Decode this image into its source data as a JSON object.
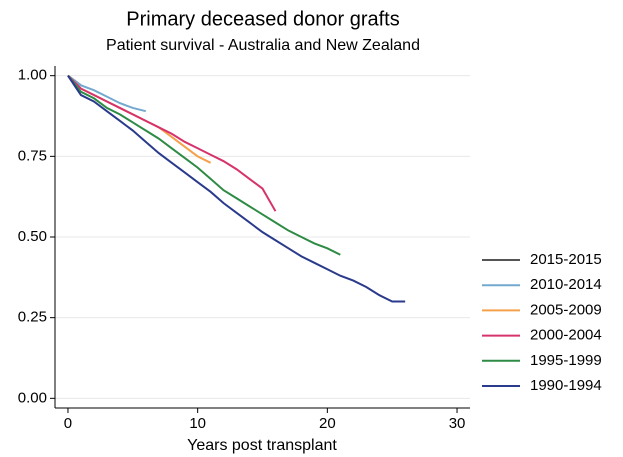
{
  "chart_data": {
    "type": "line",
    "title": "Primary deceased donor grafts",
    "subtitle": "Patient survival - Australia and New Zealand",
    "x_label": "Years post transplant",
    "xlim": [
      -1,
      31
    ],
    "xticks": [
      0,
      10,
      20,
      30
    ],
    "ylim": [
      -0.03,
      1.03
    ],
    "yticks": [
      {
        "value": 0,
        "label": "0.00"
      },
      {
        "value": 0.25,
        "label": "0.25"
      },
      {
        "value": 0.5,
        "label": "0.50"
      },
      {
        "value": 0.75,
        "label": "0.75"
      },
      {
        "value": 1,
        "label": "1.00"
      }
    ],
    "grid": true,
    "legend": "right",
    "series": [
      {
        "name": "2015-2015",
        "color": "#555555",
        "x": [
          0,
          1
        ],
        "values": [
          1,
          0.97
        ]
      },
      {
        "name": "2010-2014",
        "color": "#74a9cf",
        "x": [
          0,
          1,
          2,
          3,
          4,
          5,
          6
        ],
        "values": [
          1,
          0.97,
          0.955,
          0.935,
          0.915,
          0.9,
          0.89
        ]
      },
      {
        "name": "2005-2009",
        "color": "#f5a04a",
        "x": [
          0,
          1,
          2,
          3,
          4,
          5,
          6,
          7,
          8,
          9,
          10,
          11
        ],
        "values": [
          1,
          0.96,
          0.94,
          0.92,
          0.9,
          0.88,
          0.86,
          0.84,
          0.81,
          0.78,
          0.75,
          0.73
        ]
      },
      {
        "name": "2000-2004",
        "color": "#d6336c",
        "x": [
          0,
          1,
          2,
          3,
          4,
          5,
          6,
          7,
          8,
          9,
          10,
          11,
          12,
          13,
          14,
          15,
          16
        ],
        "values": [
          1,
          0.96,
          0.94,
          0.92,
          0.9,
          0.88,
          0.86,
          0.84,
          0.82,
          0.795,
          0.775,
          0.755,
          0.735,
          0.71,
          0.68,
          0.65,
          0.58
        ]
      },
      {
        "name": "1995-1999",
        "color": "#2e8b45",
        "x": [
          0,
          1,
          2,
          3,
          4,
          5,
          6,
          7,
          8,
          9,
          10,
          11,
          12,
          13,
          14,
          15,
          16,
          17,
          18,
          19,
          20,
          21
        ],
        "values": [
          1,
          0.95,
          0.93,
          0.9,
          0.88,
          0.855,
          0.83,
          0.805,
          0.775,
          0.745,
          0.715,
          0.68,
          0.645,
          0.62,
          0.595,
          0.57,
          0.545,
          0.52,
          0.5,
          0.48,
          0.465,
          0.445
        ]
      },
      {
        "name": "1990-1994",
        "color": "#2a3a8c",
        "x": [
          0,
          1,
          2,
          3,
          4,
          5,
          6,
          7,
          8,
          9,
          10,
          11,
          12,
          13,
          14,
          15,
          16,
          17,
          18,
          19,
          20,
          21,
          22,
          23,
          24,
          25,
          26
        ],
        "values": [
          1,
          0.94,
          0.92,
          0.89,
          0.86,
          0.83,
          0.795,
          0.76,
          0.73,
          0.7,
          0.67,
          0.64,
          0.605,
          0.575,
          0.545,
          0.515,
          0.49,
          0.465,
          0.44,
          0.42,
          0.4,
          0.38,
          0.365,
          0.345,
          0.32,
          0.3,
          0.3
        ]
      }
    ]
  }
}
